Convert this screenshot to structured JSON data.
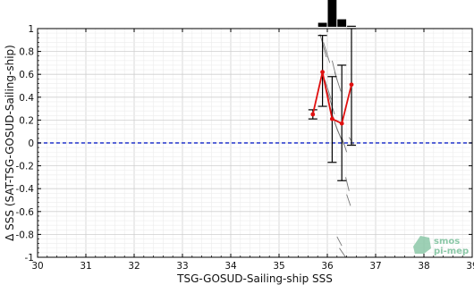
{
  "chart_data": {
    "type": "line",
    "xlabel": "TSG-GOSUD-Sailing-ship SSS",
    "ylabel": "Δ SSS (SAT-TSG-GOSUD-Sailing-ship)",
    "xlim": [
      30,
      39
    ],
    "ylim": [
      -1,
      1
    ],
    "x_ticks": [
      "30",
      "31",
      "32",
      "33",
      "34",
      "35",
      "36",
      "37",
      "38",
      "39"
    ],
    "y_ticks": [
      "-1",
      "-0.8",
      "-0.6",
      "-0.4",
      "-0.2",
      "0",
      "0.2",
      "0.4",
      "0.6",
      "0.8",
      "1"
    ],
    "grid": true,
    "reference_line": {
      "y": 0,
      "color": "#2233cc",
      "style": "dashed"
    },
    "series": [
      {
        "color": "#e01010",
        "x": [
          35.7,
          35.9,
          36.1,
          36.3,
          36.5
        ],
        "y": [
          0.25,
          0.62,
          0.21,
          0.17,
          0.51
        ],
        "err_low": [
          0.21,
          0.32,
          -0.17,
          -0.33,
          -0.02
        ],
        "err_high": [
          0.29,
          0.94,
          0.58,
          0.68,
          1.0
        ]
      }
    ],
    "scatter_segments_color": "#777777",
    "scatter_segments": [
      {
        "x": [
          35.85,
          35.98
        ],
        "y": [
          0.95,
          0.75
        ]
      },
      {
        "x": [
          35.92,
          36.05
        ],
        "y": [
          0.88,
          0.7
        ]
      },
      {
        "x": [
          36.1,
          36.2
        ],
        "y": [
          0.72,
          0.55
        ]
      },
      {
        "x": [
          36.15,
          36.28
        ],
        "y": [
          0.62,
          0.45
        ]
      },
      {
        "x": [
          35.95,
          36.08
        ],
        "y": [
          0.55,
          0.38
        ]
      },
      {
        "x": [
          36.0,
          36.15
        ],
        "y": [
          0.45,
          0.25
        ]
      },
      {
        "x": [
          36.05,
          36.2
        ],
        "y": [
          0.32,
          0.12
        ]
      },
      {
        "x": [
          36.15,
          36.3
        ],
        "y": [
          0.18,
          0.02
        ]
      },
      {
        "x": [
          36.2,
          36.35
        ],
        "y": [
          0.12,
          -0.02
        ]
      },
      {
        "x": [
          36.3,
          36.4
        ],
        "y": [
          0.05,
          -0.08
        ]
      },
      {
        "x": [
          36.38,
          36.45
        ],
        "y": [
          -0.3,
          -0.42
        ]
      },
      {
        "x": [
          36.4,
          36.48
        ],
        "y": [
          -0.45,
          -0.55
        ]
      },
      {
        "x": [
          36.2,
          36.3
        ],
        "y": [
          -0.82,
          -0.9
        ]
      },
      {
        "x": [
          36.25,
          36.38
        ],
        "y": [
          -0.92,
          -1.0
        ]
      },
      {
        "x": [
          36.45,
          36.55
        ],
        "y": [
          0.05,
          -0.02
        ]
      }
    ],
    "histogram": {
      "color": "#000000",
      "bins": [
        35.9,
        36.1,
        36.3,
        36.5
      ],
      "heights": [
        0.15,
        1.0,
        0.28,
        0.04
      ]
    },
    "logo": {
      "line1": "smos",
      "line2": "pi-mep",
      "color": "#8cc8a8"
    }
  }
}
